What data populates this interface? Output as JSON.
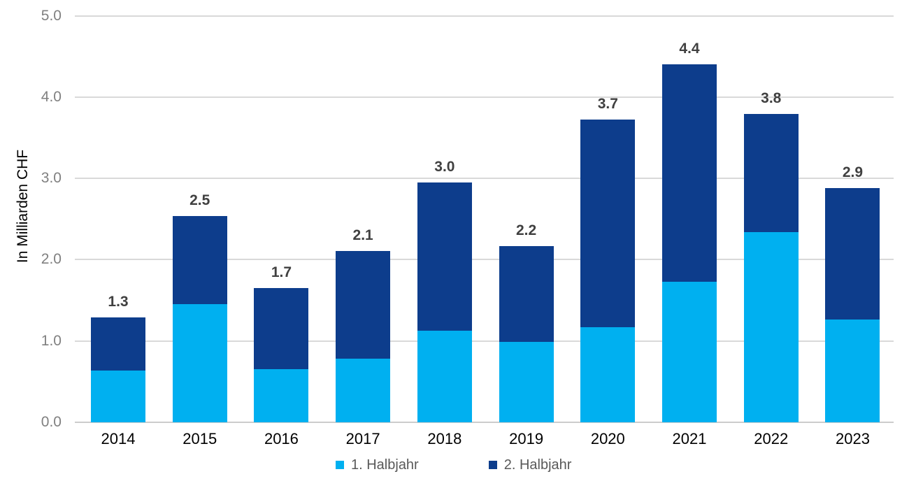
{
  "chart_data": {
    "type": "bar",
    "stacked": true,
    "title": "",
    "ylabel": "In Milliarden CHF",
    "xlabel": "",
    "categories": [
      "2014",
      "2015",
      "2016",
      "2017",
      "2018",
      "2019",
      "2020",
      "2021",
      "2022",
      "2023"
    ],
    "series": [
      {
        "name": "1. Halbjahr",
        "color": "#00B0F0",
        "values": [
          0.64,
          1.45,
          0.65,
          0.78,
          1.13,
          0.99,
          1.17,
          1.73,
          2.34,
          1.26
        ]
      },
      {
        "name": "2. Halbjahr",
        "color": "#0D3D8C",
        "values": [
          0.65,
          1.09,
          1.0,
          1.33,
          1.82,
          1.18,
          2.55,
          2.67,
          1.45,
          1.62
        ]
      }
    ],
    "totals_labels": [
      "1.3",
      "2.5",
      "1.7",
      "2.1",
      "3.0",
      "2.2",
      "3.7",
      "4.4",
      "3.8",
      "2.9"
    ],
    "yticks": [
      "0.0",
      "1.0",
      "2.0",
      "3.0",
      "4.0",
      "5.0"
    ],
    "ylim": [
      0,
      5
    ],
    "grid": true,
    "legend_position": "bottom"
  },
  "colors": {
    "background": "#ffffff",
    "gridline": "#d9d9d9",
    "axis_line": "#cccccc",
    "ytick_text": "#808080",
    "xtick_text": "#000000",
    "data_label_text": "#404040",
    "legend_text": "#595959"
  }
}
